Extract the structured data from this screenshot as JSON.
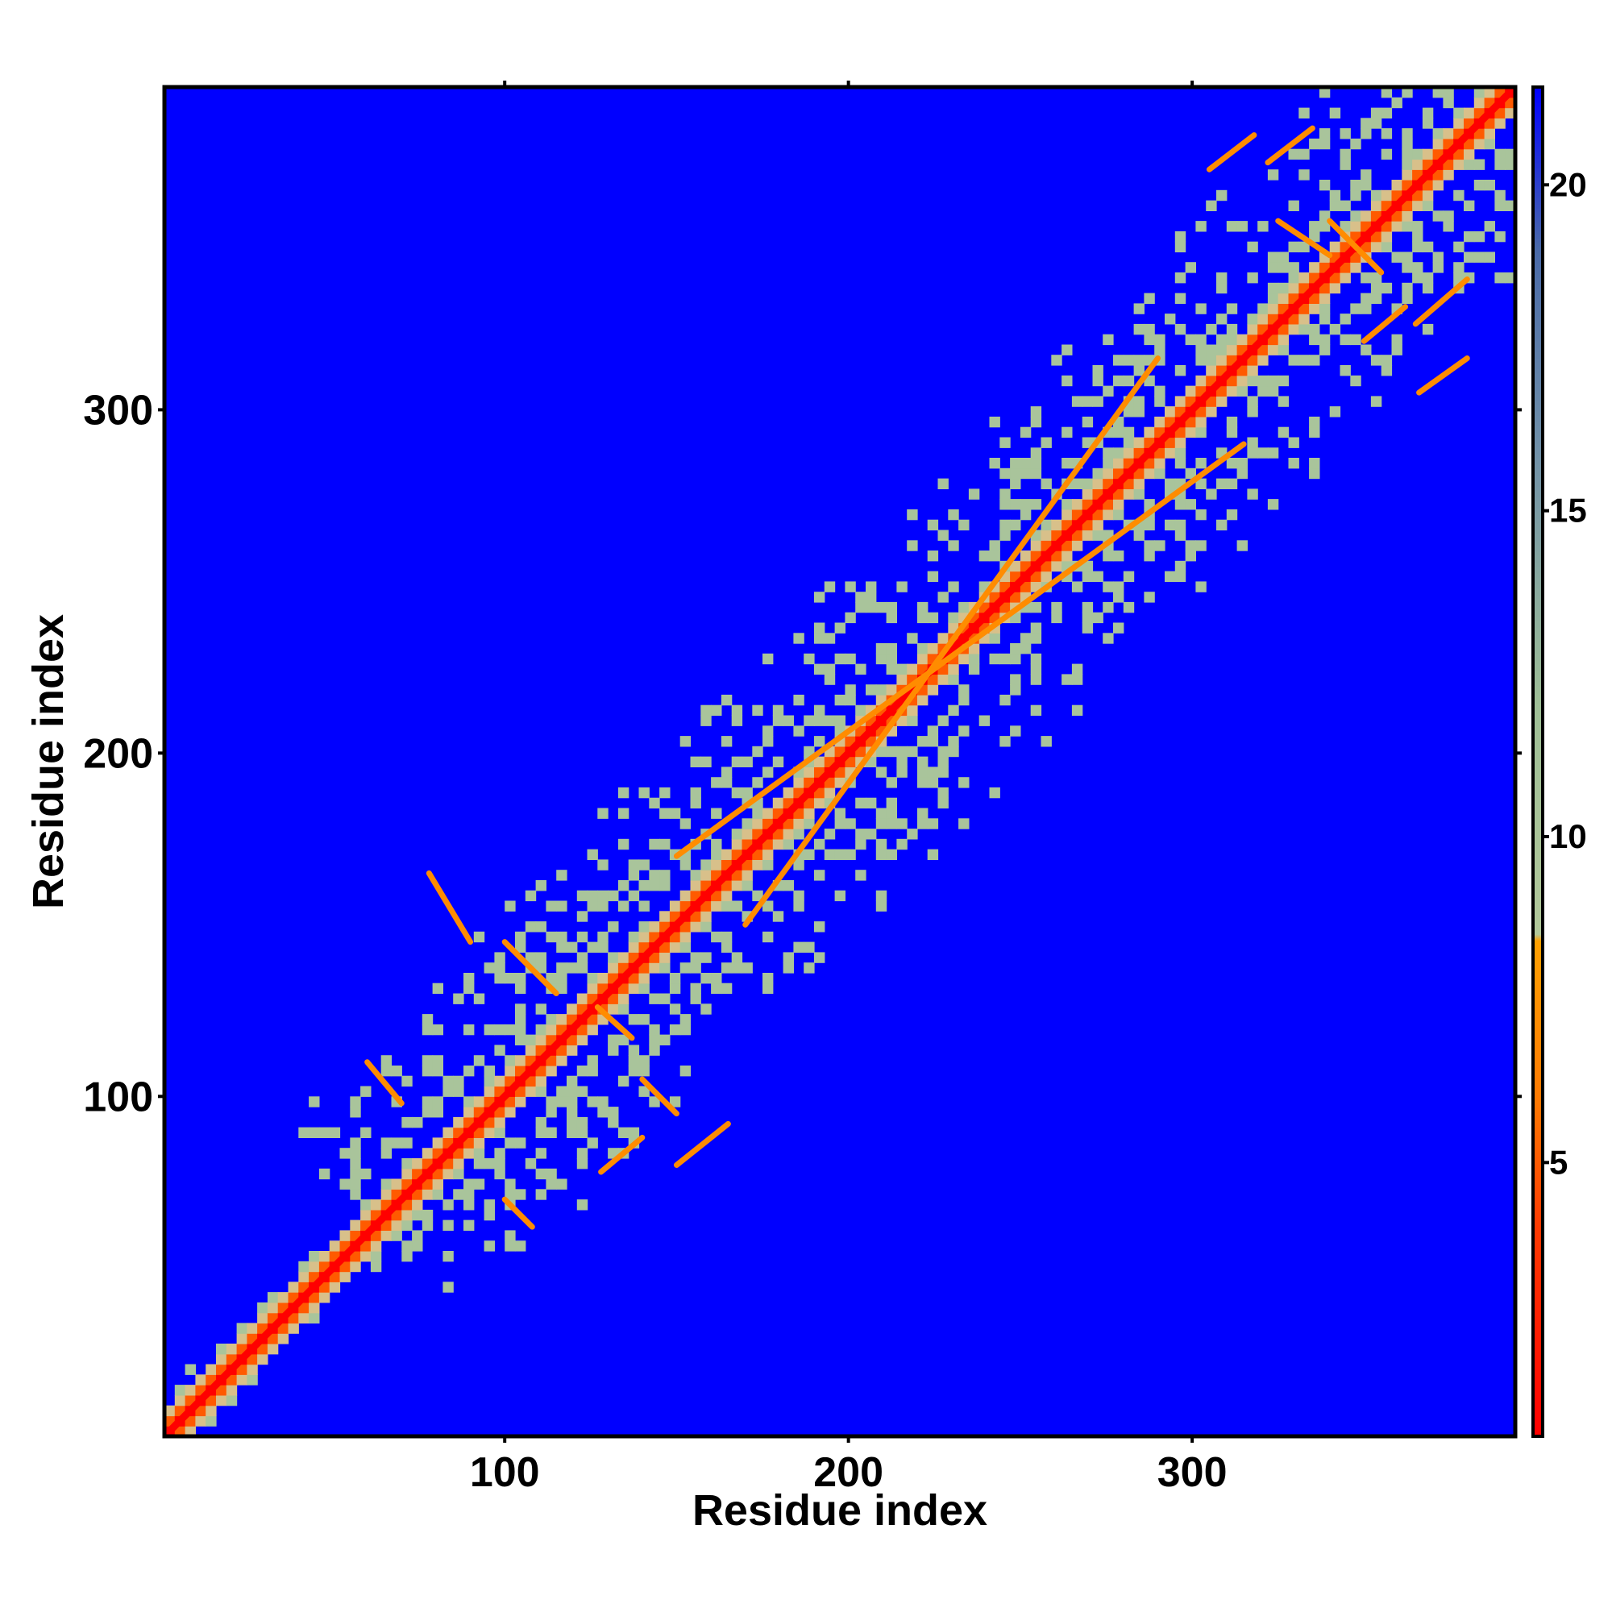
{
  "chart_data": {
    "type": "heatmap",
    "title": "",
    "xlabel": "Residue index",
    "ylabel": "Residue index",
    "xlim": [
      1,
      394
    ],
    "ylim": [
      1,
      394
    ],
    "x_ticks": [
      100,
      200,
      300
    ],
    "y_ticks": [
      100,
      200,
      300
    ],
    "x_tick_labels": [
      "100",
      "200",
      "300"
    ],
    "y_tick_labels": [
      "100",
      "200",
      "300"
    ],
    "grid": false,
    "legend": "colorbar-right",
    "colorbar": {
      "range": [
        0.8,
        21.5
      ],
      "ticks": [
        5,
        10,
        15,
        20
      ],
      "tick_labels": [
        "5",
        "10",
        "15",
        "20"
      ],
      "stops": [
        {
          "value": 0.8,
          "color": "#ff0000"
        },
        {
          "value": 4.0,
          "color": "#ff3a00"
        },
        {
          "value": 6.0,
          "color": "#ff7a00"
        },
        {
          "value": 8.4,
          "color": "#ffa000"
        },
        {
          "value": 8.5,
          "color": "#b2c89a"
        },
        {
          "value": 12.0,
          "color": "#9fbf96"
        },
        {
          "value": 16.0,
          "color": "#6f8fa8"
        },
        {
          "value": 19.0,
          "color": "#4a6aa8"
        },
        {
          "value": 21.5,
          "color": "#0000ff"
        }
      ]
    },
    "colors": {
      "background": "#0000ff",
      "diagonal": "#ff0000",
      "strand_pairing": "#ff8c00",
      "near_contact": "#a9c49b"
    },
    "structure": {
      "contact_band_halfwidth_residues": 55,
      "lattice_period_residues": 12,
      "strand_pairings": [
        {
          "from": [
            150,
            170
          ],
          "to": [
            315,
            290
          ]
        },
        {
          "from": [
            170,
            150
          ],
          "to": [
            290,
            315
          ]
        },
        {
          "from": [
            78,
            165
          ],
          "to": [
            90,
            145
          ]
        },
        {
          "from": [
            60,
            110
          ],
          "to": [
            70,
            98
          ]
        },
        {
          "from": [
            100,
            145
          ],
          "to": [
            115,
            130
          ]
        },
        {
          "from": [
            127,
            126
          ],
          "to": [
            137,
            117
          ]
        },
        {
          "from": [
            140,
            105
          ],
          "to": [
            150,
            95
          ]
        },
        {
          "from": [
            100,
            70
          ],
          "to": [
            108,
            62
          ]
        },
        {
          "from": [
            128,
            78
          ],
          "to": [
            140,
            88
          ]
        },
        {
          "from": [
            150,
            80
          ],
          "to": [
            165,
            92
          ]
        },
        {
          "from": [
            305,
            370
          ],
          "to": [
            318,
            380
          ]
        },
        {
          "from": [
            322,
            372
          ],
          "to": [
            335,
            382
          ]
        },
        {
          "from": [
            325,
            355
          ],
          "to": [
            340,
            345
          ]
        },
        {
          "from": [
            340,
            355
          ],
          "to": [
            355,
            340
          ]
        },
        {
          "from": [
            350,
            320
          ],
          "to": [
            362,
            330
          ]
        },
        {
          "from": [
            365,
            325
          ],
          "to": [
            380,
            338
          ]
        },
        {
          "from": [
            366,
            305
          ],
          "to": [
            380,
            315
          ]
        }
      ]
    }
  }
}
